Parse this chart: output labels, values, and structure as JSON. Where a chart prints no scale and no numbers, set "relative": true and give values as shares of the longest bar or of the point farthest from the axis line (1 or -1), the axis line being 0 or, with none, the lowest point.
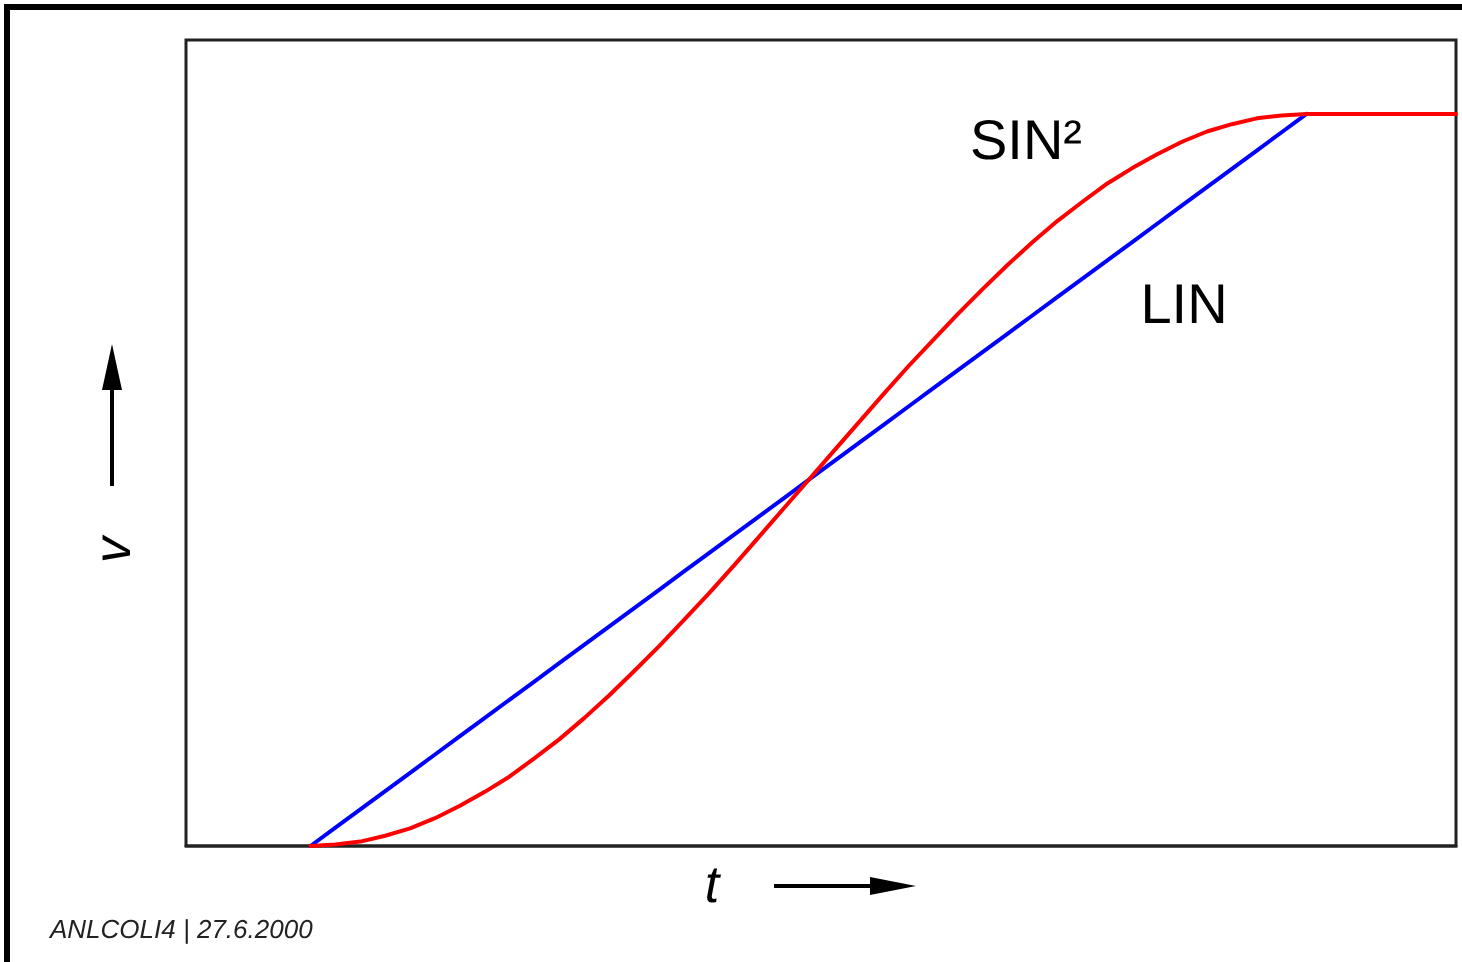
{
  "chart_data": {
    "type": "line",
    "relative": true,
    "xlabel": "t",
    "ylabel": "v",
    "annotations": [
      "ANLCOLI4 | 27.6.2000"
    ],
    "grid": false,
    "legend": false,
    "marker": "none",
    "line_style": "solid",
    "categories": [
      null,
      null,
      null,
      null,
      null,
      null,
      null,
      null,
      null,
      null,
      null,
      null,
      null,
      null,
      null,
      null,
      null,
      null,
      null,
      null,
      null,
      null,
      null,
      null,
      null,
      null,
      null,
      null,
      null,
      null,
      null,
      null,
      null,
      null,
      null,
      null,
      null,
      null,
      null,
      null,
      null,
      null,
      null,
      null,
      null,
      null,
      null,
      null,
      null,
      null,
      null,
      null
    ],
    "series": [
      {
        "name": "LIN",
        "color": "#0000ff",
        "values": [
          null,
          null,
          null,
          null,
          null,
          0,
          0.025,
          0.05,
          0.075,
          0.1,
          0.125,
          0.15,
          0.175,
          0.2,
          0.225,
          0.25,
          0.275,
          0.3,
          0.325,
          0.35,
          0.375,
          0.4,
          0.425,
          0.45,
          0.475,
          0.5,
          0.525,
          0.55,
          0.575,
          0.6,
          0.625,
          0.65,
          0.675,
          0.7,
          0.725,
          0.75,
          0.775,
          0.8,
          0.825,
          0.85,
          0.875,
          0.9,
          0.925,
          0.95,
          0.975,
          1,
          null,
          null,
          null,
          null,
          null,
          null
        ]
      },
      {
        "name": "SIN²",
        "color": "#ff0000",
        "values": [
          null,
          null,
          null,
          null,
          null,
          0,
          0.002,
          0.006,
          0.014,
          0.024,
          0.038,
          0.055,
          0.074,
          0.095,
          0.12,
          0.146,
          0.175,
          0.206,
          0.239,
          0.273,
          0.309,
          0.345,
          0.383,
          0.422,
          0.461,
          0.5,
          0.539,
          0.578,
          0.617,
          0.655,
          0.691,
          0.727,
          0.761,
          0.794,
          0.825,
          0.854,
          0.88,
          0.905,
          0.926,
          0.945,
          0.962,
          0.976,
          0.986,
          0.994,
          0.998,
          1,
          1,
          1,
          1,
          1,
          1,
          1
        ]
      }
    ]
  }
}
